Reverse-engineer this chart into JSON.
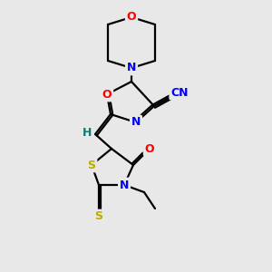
{
  "background_color": "#e8e8e8",
  "bond_color": "#000000",
  "atom_colors": {
    "O": "#ff0000",
    "N": "#0000ff",
    "S": "#bbaa00",
    "C": "#000000",
    "H": "#008080"
  },
  "figure_size": [
    3.0,
    3.0
  ],
  "dpi": 100,
  "lw": 1.6,
  "fontsize": 9
}
